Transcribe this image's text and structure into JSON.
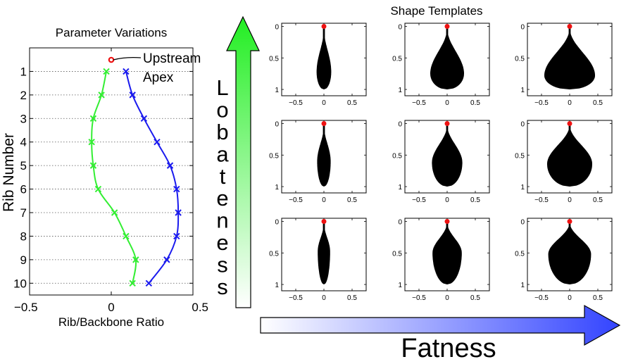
{
  "left_panel": {
    "title": "Parameter Variations",
    "xlabel": "Rib/Backbone Ratio",
    "ylabel": "Rib Number",
    "annotation": [
      "Upstream",
      "Apex"
    ]
  },
  "right_panel": {
    "title": "Shape Templates",
    "vertical_arrow_label": "Lobateness",
    "horizontal_arrow_label": "Fatness"
  },
  "colors": {
    "series_green": "#33ee33",
    "series_blue": "#1a1aee",
    "apex_red": "#ee1111",
    "shape_fill": "#000000",
    "arrow_green_top": "#22ee22",
    "arrow_blue_right": "#3344ff"
  },
  "chart_data": [
    {
      "type": "line",
      "title": "Parameter Variations",
      "xlabel": "Rib/Backbone Ratio",
      "ylabel": "Rib Number",
      "xlim": [
        -0.5,
        0.5
      ],
      "ylim": [
        10.5,
        0
      ],
      "x_ticks": [
        "−0.5",
        "0",
        "0.5"
      ],
      "y_ticks": [
        "1",
        "2",
        "3",
        "4",
        "5",
        "6",
        "7",
        "8",
        "9",
        "10"
      ],
      "grid": "dotted horizontal at each rib",
      "series": [
        {
          "color": "#33ee33",
          "points": [
            [
              -0.03,
              1
            ],
            [
              -0.06,
              2
            ],
            [
              -0.11,
              3
            ],
            [
              -0.12,
              4
            ],
            [
              -0.11,
              5
            ],
            [
              -0.08,
              6
            ],
            [
              0.02,
              7
            ],
            [
              0.09,
              8
            ],
            [
              0.15,
              9
            ],
            [
              0.13,
              10
            ]
          ]
        },
        {
          "color": "#1a1aee",
          "points": [
            [
              0.09,
              1
            ],
            [
              0.13,
              2
            ],
            [
              0.2,
              3
            ],
            [
              0.28,
              4
            ],
            [
              0.36,
              5
            ],
            [
              0.4,
              6
            ],
            [
              0.41,
              7
            ],
            [
              0.4,
              8
            ],
            [
              0.34,
              9
            ],
            [
              0.23,
              10
            ]
          ]
        }
      ],
      "annotation": {
        "text": [
          "Upstream",
          "Apex"
        ],
        "point": [
          0,
          0.5
        ]
      }
    },
    {
      "type": "scatter",
      "title": "Shape Templates",
      "layout": "3x3 grid of shape silhouettes",
      "x_ticks": [
        "−0.5",
        "0",
        "0.5"
      ],
      "y_ticks": [
        "0",
        "0.5",
        "1"
      ],
      "xlim": [
        -0.75,
        0.75
      ],
      "ylim": [
        1.1,
        -0.05
      ],
      "apex_point": [
        0,
        0
      ],
      "templates": [
        {
          "row": 1,
          "col": 1,
          "max_half_width": 0.13,
          "belly_y": 0.72
        },
        {
          "row": 1,
          "col": 2,
          "max_half_width": 0.3,
          "belly_y": 0.75
        },
        {
          "row": 1,
          "col": 3,
          "max_half_width": 0.45,
          "belly_y": 0.78
        },
        {
          "row": 2,
          "col": 1,
          "max_half_width": 0.12,
          "belly_y": 0.6
        },
        {
          "row": 2,
          "col": 2,
          "max_half_width": 0.27,
          "belly_y": 0.62
        },
        {
          "row": 2,
          "col": 3,
          "max_half_width": 0.4,
          "belly_y": 0.64
        },
        {
          "row": 3,
          "col": 1,
          "max_half_width": 0.11,
          "belly_y": 0.48
        },
        {
          "row": 3,
          "col": 2,
          "max_half_width": 0.26,
          "belly_y": 0.5
        },
        {
          "row": 3,
          "col": 3,
          "max_half_width": 0.38,
          "belly_y": 0.52
        }
      ]
    }
  ]
}
